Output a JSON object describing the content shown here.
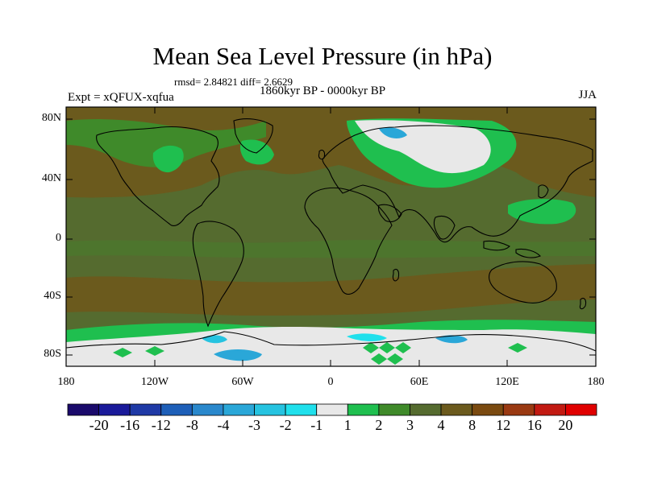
{
  "title": "Mean Sea Level Pressure (in hPa)",
  "stats": "rmsd= 2.84821 diff= 2.6629",
  "period": "1860kyr BP - 0000kyr BP",
  "experiment": "Expt = xQFUX-xqfua",
  "season": "JJA",
  "lat_labels": [
    "80N",
    "40N",
    "0",
    "40S",
    "80S"
  ],
  "lon_labels": [
    "180",
    "120W",
    "60W",
    "0",
    "60E",
    "120E",
    "180"
  ],
  "colorbar": {
    "labels": [
      "-20",
      "-16",
      "-12",
      "-8",
      "-4",
      "-3",
      "-2",
      "-1",
      "1",
      "2",
      "3",
      "4",
      "8",
      "12",
      "16",
      "20"
    ],
    "colors": [
      "#1a0a6b",
      "#1a1a9a",
      "#1f3aa6",
      "#1e5fb8",
      "#2a88cc",
      "#2aa7d8",
      "#26c3e0",
      "#20e0ec",
      "#e8e8e8",
      "#1fbf4f",
      "#3f8a2a",
      "#556b2f",
      "#6b5a1d",
      "#7a4a10",
      "#9a3a12",
      "#c21a12",
      "#e00000"
    ]
  },
  "colors": {
    "background_field": "#556b2f",
    "highs": "#6b5a1d",
    "positive_small": "#3f8a2a",
    "light_green": "#1fbf4f",
    "neutral": "#e8e8e8",
    "negative": "#2aa7d8"
  }
}
